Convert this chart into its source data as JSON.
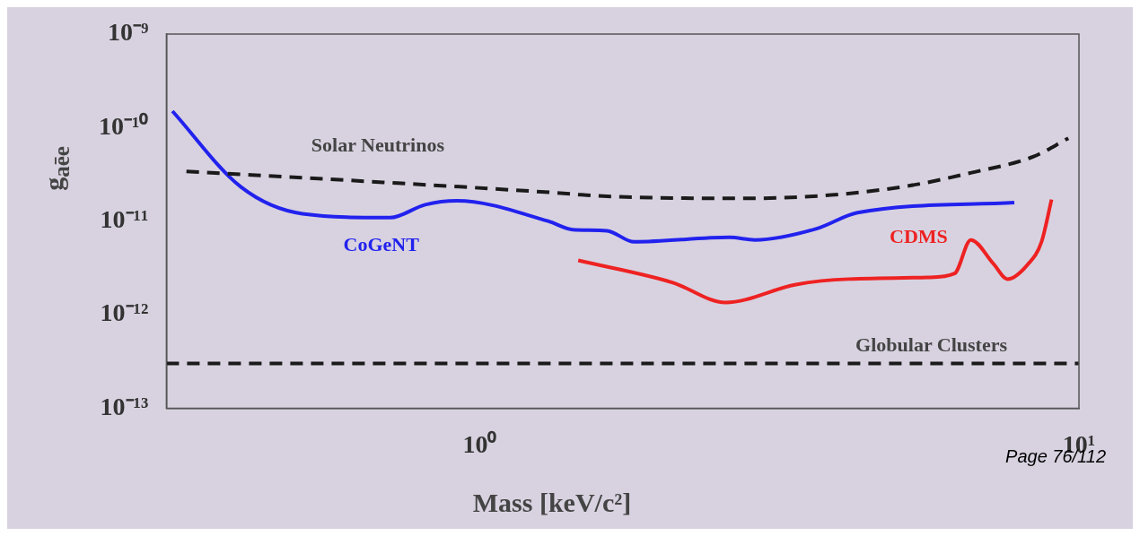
{
  "chart_data": {
    "type": "line",
    "xlabel": "Mass [keV/c²]",
    "ylabel": "g$_{aēe}$",
    "log": "xy",
    "grid": false,
    "legend": false,
    "marker": "none",
    "xlim": [
      0.3,
      10
    ],
    "xticks": [
      {
        "value": 1,
        "label": "10⁰"
      },
      {
        "value": 10,
        "label": "10¹"
      }
    ],
    "ylim": [
      1e-13,
      1e-09
    ],
    "yticks": [
      {
        "value": 1e-13,
        "label": "10⁻¹³"
      },
      {
        "value": 1e-12,
        "label": "10⁻¹²"
      },
      {
        "value": 1e-11,
        "label": "10⁻¹¹"
      },
      {
        "value": 1e-10,
        "label": "10⁻¹⁰"
      },
      {
        "value": 1e-09,
        "label": "10⁻⁹"
      }
    ],
    "series": [
      {
        "name": "Solar Neutrinos",
        "color": "#1a1a1a",
        "line_style": "dashed",
        "x": [
          0.324,
          0.69,
          1.43,
          1.55,
          2.75,
          3.86,
          5.23,
          6.62,
          8.4,
          9.6
        ],
        "values": [
          3.4e-11,
          2.6e-11,
          1.95e-11,
          1.87e-11,
          1.75e-11,
          1.9e-11,
          2.4e-11,
          3.3e-11,
          4.9e-11,
          7.7e-11
        ]
      },
      {
        "name": "CoGeNT",
        "color": "#2222ee",
        "line_style": "solid",
        "x": [
          0.307,
          0.4,
          0.506,
          0.709,
          0.811,
          0.916,
          1.3,
          1.43,
          1.63,
          1.81,
          2.61,
          2.88,
          3.65,
          4.27,
          7.8
        ],
        "values": [
          1.5e-10,
          2.3e-11,
          1.2e-11,
          1.09e-11,
          1.5e-11,
          1.65e-11,
          1e-11,
          8.1e-12,
          7.9e-12,
          6e-12,
          6.7e-12,
          6.3e-12,
          8.3e-12,
          1.23e-11,
          1.58e-11
        ]
      },
      {
        "name": "CDMS",
        "color": "#ee2222",
        "line_style": "solid",
        "x": [
          1.46,
          2.1,
          2.57,
          3.37,
          4.13,
          5.6,
          6.2,
          6.6,
          7.2,
          7.6,
          8.2,
          8.66,
          9.0
        ],
        "values": [
          3.8e-12,
          2.2e-12,
          1.35e-12,
          2.1e-12,
          2.4e-12,
          2.5e-12,
          2.75e-12,
          6.3e-12,
          3.5e-12,
          2.4e-12,
          3.4e-12,
          6e-12,
          1.7e-11
        ]
      }
    ],
    "ref_lines": [
      {
        "axis": "y",
        "value": 3e-13,
        "label": "Globular Clusters",
        "color": "#1a1a1a",
        "line_style": "dashed"
      }
    ],
    "annotations": [
      "Page 76/112"
    ]
  }
}
